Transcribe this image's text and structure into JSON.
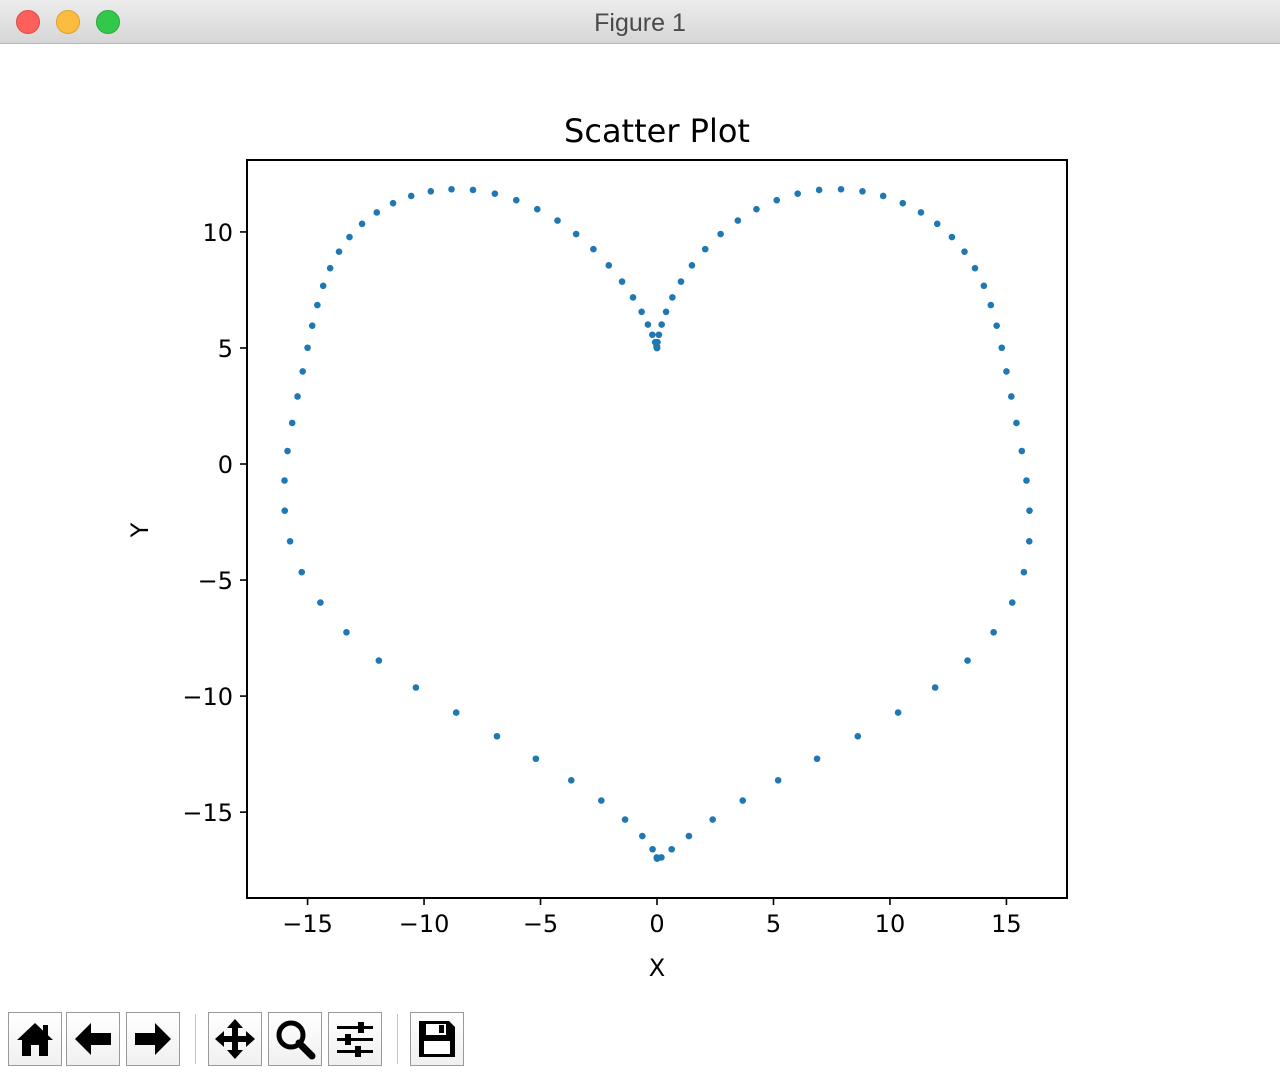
{
  "window": {
    "title": "Figure 1",
    "controls": [
      "close",
      "minimize",
      "maximize"
    ]
  },
  "toolbar": {
    "buttons": [
      {
        "name": "home-icon",
        "action": "home"
      },
      {
        "name": "back-arrow-icon",
        "action": "back"
      },
      {
        "name": "forward-arrow-icon",
        "action": "forward"
      },
      {
        "name": "pan-move-icon",
        "action": "pan"
      },
      {
        "name": "zoom-magnifier-icon",
        "action": "zoom"
      },
      {
        "name": "configure-subplots-icon",
        "action": "subplots"
      },
      {
        "name": "save-floppy-icon",
        "action": "save"
      }
    ]
  },
  "chart_data": {
    "type": "scatter",
    "title": "Scatter Plot",
    "xlabel": "X",
    "ylabel": "Y",
    "xlim": [
      -17.6,
      17.6
    ],
    "ylim": [
      -18.7,
      13.1
    ],
    "xticks": [
      -15,
      -10,
      -5,
      0,
      5,
      10,
      15
    ],
    "yticks": [
      -15,
      -10,
      -5,
      0,
      5,
      10
    ],
    "xtick_labels": [
      "−15",
      "−10",
      "−5",
      "0",
      "5",
      "10",
      "15"
    ],
    "ytick_labels": [
      "−15",
      "−10",
      "−5",
      "0",
      "5",
      "10"
    ],
    "grid": false,
    "marker_color": "#1f77b4",
    "series": [
      {
        "x": [
          0.0,
          0.0,
          0.02,
          0.08,
          0.2,
          0.39,
          0.66,
          1.03,
          1.5,
          2.07,
          2.73,
          3.47,
          4.27,
          5.14,
          6.04,
          6.96,
          7.9,
          8.82,
          9.71,
          10.55,
          11.33,
          12.03,
          12.66,
          13.2,
          13.65,
          14.03,
          14.33,
          14.58,
          14.8,
          15.0,
          15.21,
          15.43,
          15.66,
          15.86,
          15.99,
          15.98,
          15.75,
          15.25,
          14.45,
          13.33,
          11.94,
          10.35,
          8.62,
          6.87,
          5.2,
          3.68,
          2.39,
          1.37,
          0.63,
          0.19,
          0.01,
          -0.0,
          -0.0,
          -0.02,
          -0.08,
          -0.2,
          -0.39,
          -0.66,
          -1.03,
          -1.5,
          -2.07,
          -2.73,
          -3.47,
          -4.27,
          -5.14,
          -6.04,
          -6.96,
          -7.9,
          -8.82,
          -9.71,
          -10.55,
          -11.33,
          -12.03,
          -12.66,
          -13.2,
          -13.65,
          -14.03,
          -14.33,
          -14.58,
          -14.8,
          -15.0,
          -15.21,
          -15.43,
          -15.66,
          -15.86,
          -15.99,
          -15.98,
          -15.75,
          -15.25,
          -14.45,
          -13.33,
          -11.94,
          -10.35,
          -8.62,
          -6.87,
          -5.2,
          -3.68,
          -2.39,
          -1.37,
          -0.63,
          -0.19,
          -0.01
        ],
        "y": [
          5.0,
          5.06,
          5.25,
          5.57,
          6.01,
          6.56,
          7.18,
          7.86,
          8.56,
          9.26,
          9.91,
          10.49,
          10.98,
          11.37,
          11.65,
          11.81,
          11.84,
          11.75,
          11.55,
          11.24,
          10.84,
          10.35,
          9.78,
          9.15,
          8.44,
          7.68,
          6.85,
          5.96,
          5.01,
          3.99,
          2.91,
          1.77,
          0.56,
          -0.71,
          -2.01,
          -3.33,
          -4.66,
          -5.97,
          -7.25,
          -8.47,
          -9.63,
          -10.71,
          -11.73,
          -12.7,
          -13.63,
          -14.5,
          -15.32,
          -16.03,
          -16.6,
          -16.95,
          -17.0,
          -17.0,
          5.0,
          5.06,
          5.25,
          5.57,
          6.01,
          6.56,
          7.18,
          7.86,
          8.56,
          9.26,
          9.91,
          10.49,
          10.98,
          11.37,
          11.65,
          11.81,
          11.84,
          11.75,
          11.55,
          11.24,
          10.84,
          10.35,
          9.78,
          9.15,
          8.44,
          7.68,
          6.85,
          5.96,
          5.01,
          3.99,
          2.91,
          1.77,
          0.56,
          -0.71,
          -2.01,
          -3.33,
          -4.66,
          -5.97,
          -7.25,
          -8.47,
          -9.63,
          -10.71,
          -11.73,
          -12.7,
          -13.63,
          -14.5,
          -15.32,
          -16.03,
          -16.6,
          -16.95
        ]
      }
    ]
  }
}
